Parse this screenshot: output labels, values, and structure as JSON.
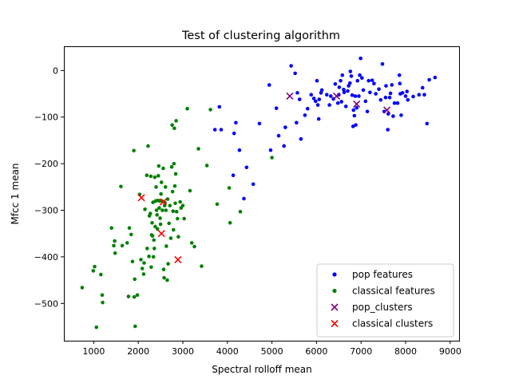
{
  "chart_data": {
    "type": "scatter",
    "title": "Test of clustering algorithm",
    "xlabel": "Spectral rolloff mean",
    "ylabel": "Mfcc 1 mean",
    "xlim": [
      330,
      9200
    ],
    "ylim": [
      -580,
      52
    ],
    "xticks": [
      1000,
      2000,
      3000,
      4000,
      5000,
      6000,
      7000,
      8000,
      9000
    ],
    "yticks": [
      0,
      -100,
      -200,
      -300,
      -400,
      -500
    ],
    "grid": false,
    "legend_position": "lower-right",
    "series": [
      {
        "name": "pop features",
        "marker": "dot",
        "color": "#0000ff",
        "points": [
          [
            3820,
            -78
          ],
          [
            3720,
            -127
          ],
          [
            3860,
            -127
          ],
          [
            4150,
            -135
          ],
          [
            4190,
            -112
          ],
          [
            4270,
            -171
          ],
          [
            4130,
            -225
          ],
          [
            4370,
            -275
          ],
          [
            4430,
            -208
          ],
          [
            4580,
            -244
          ],
          [
            4720,
            -114
          ],
          [
            4940,
            -31
          ],
          [
            4970,
            -171
          ],
          [
            5100,
            -81
          ],
          [
            5150,
            -140
          ],
          [
            5270,
            -162
          ],
          [
            5300,
            -122
          ],
          [
            5430,
            10
          ],
          [
            5520,
            -6
          ],
          [
            5550,
            -112
          ],
          [
            5570,
            -48
          ],
          [
            5620,
            -62
          ],
          [
            5650,
            -147
          ],
          [
            5740,
            -96
          ],
          [
            5800,
            -82
          ],
          [
            5880,
            -52
          ],
          [
            5940,
            -60
          ],
          [
            5980,
            -66
          ],
          [
            6010,
            -22
          ],
          [
            6030,
            -74
          ],
          [
            6050,
            -104
          ],
          [
            6060,
            -62
          ],
          [
            6100,
            -48
          ],
          [
            6120,
            -42
          ],
          [
            6230,
            -52
          ],
          [
            6290,
            -74
          ],
          [
            6320,
            -55
          ],
          [
            6380,
            -61
          ],
          [
            6420,
            -29
          ],
          [
            6480,
            -70
          ],
          [
            6500,
            -52
          ],
          [
            6510,
            -36
          ],
          [
            6540,
            -22
          ],
          [
            6560,
            -67
          ],
          [
            6580,
            -10
          ],
          [
            6610,
            -41
          ],
          [
            6620,
            -47
          ],
          [
            6660,
            -77
          ],
          [
            6700,
            -44
          ],
          [
            6720,
            -33
          ],
          [
            6750,
            -27
          ],
          [
            6760,
            -2
          ],
          [
            6780,
            -12
          ],
          [
            6800,
            -53
          ],
          [
            6820,
            -120
          ],
          [
            6830,
            -85
          ],
          [
            6850,
            -97
          ],
          [
            6870,
            -55
          ],
          [
            6880,
            -117
          ],
          [
            6900,
            -80
          ],
          [
            6920,
            -22
          ],
          [
            6950,
            -55
          ],
          [
            6970,
            -10
          ],
          [
            6990,
            26
          ],
          [
            7020,
            -16
          ],
          [
            7050,
            -42
          ],
          [
            7100,
            -66
          ],
          [
            7140,
            -88
          ],
          [
            7170,
            -22
          ],
          [
            7200,
            -47
          ],
          [
            7250,
            -21
          ],
          [
            7290,
            -28
          ],
          [
            7330,
            -50
          ],
          [
            7400,
            -40
          ],
          [
            7440,
            -63
          ],
          [
            7480,
            14
          ],
          [
            7520,
            -88
          ],
          [
            7550,
            -58
          ],
          [
            7560,
            -33
          ],
          [
            7600,
            -127
          ],
          [
            7610,
            -93
          ],
          [
            7640,
            -58
          ],
          [
            7660,
            -49
          ],
          [
            7690,
            -31
          ],
          [
            7720,
            -98
          ],
          [
            7750,
            -70
          ],
          [
            7820,
            -70
          ],
          [
            7860,
            -10
          ],
          [
            7870,
            -28
          ],
          [
            7880,
            -50
          ],
          [
            7900,
            -96
          ],
          [
            7930,
            -48
          ],
          [
            8000,
            -55
          ],
          [
            8030,
            -45
          ],
          [
            8050,
            -63
          ],
          [
            8170,
            -56
          ],
          [
            8300,
            -52
          ],
          [
            8380,
            -37
          ],
          [
            8420,
            -52
          ],
          [
            8480,
            -114
          ],
          [
            8530,
            -20
          ],
          [
            8660,
            -15
          ]
        ]
      },
      {
        "name": "classical features",
        "marker": "dot",
        "color": "#008000",
        "points": [
          [
            740,
            -466
          ],
          [
            990,
            -430
          ],
          [
            1020,
            -421
          ],
          [
            1060,
            -551
          ],
          [
            1160,
            -438
          ],
          [
            1190,
            -482
          ],
          [
            1200,
            -498
          ],
          [
            1400,
            -338
          ],
          [
            1450,
            -376
          ],
          [
            1470,
            -366
          ],
          [
            1480,
            -392
          ],
          [
            1610,
            -249
          ],
          [
            1640,
            -376
          ],
          [
            1750,
            -370
          ],
          [
            1780,
            -485
          ],
          [
            1800,
            -338
          ],
          [
            1840,
            -352
          ],
          [
            1870,
            -410
          ],
          [
            1900,
            -172
          ],
          [
            1910,
            -486
          ],
          [
            1920,
            -448
          ],
          [
            1930,
            -549
          ],
          [
            1980,
            -482
          ],
          [
            2030,
            -266
          ],
          [
            2060,
            -406
          ],
          [
            2090,
            -425
          ],
          [
            2120,
            -437
          ],
          [
            2130,
            -413
          ],
          [
            2150,
            -298
          ],
          [
            2190,
            -225
          ],
          [
            2200,
            -382
          ],
          [
            2220,
            -162
          ],
          [
            2240,
            -399
          ],
          [
            2250,
            -312
          ],
          [
            2270,
            -307
          ],
          [
            2280,
            -227
          ],
          [
            2290,
            -422
          ],
          [
            2300,
            -353
          ],
          [
            2310,
            -327
          ],
          [
            2320,
            -355
          ],
          [
            2330,
            -283
          ],
          [
            2340,
            -400
          ],
          [
            2350,
            -364
          ],
          [
            2360,
            -382
          ],
          [
            2370,
            -229
          ],
          [
            2380,
            -335
          ],
          [
            2390,
            -280
          ],
          [
            2400,
            -250
          ],
          [
            2410,
            -300
          ],
          [
            2420,
            -310
          ],
          [
            2430,
            -340
          ],
          [
            2440,
            -279
          ],
          [
            2450,
            -226
          ],
          [
            2460,
            -205
          ],
          [
            2470,
            -295
          ],
          [
            2480,
            -280
          ],
          [
            2490,
            -317
          ],
          [
            2500,
            -330
          ],
          [
            2510,
            -265
          ],
          [
            2520,
            -240
          ],
          [
            2530,
            -280
          ],
          [
            2540,
            -300
          ],
          [
            2560,
            -210
          ],
          [
            2570,
            -427
          ],
          [
            2580,
            -445
          ],
          [
            2590,
            -290
          ],
          [
            2600,
            -284
          ],
          [
            2610,
            -250
          ],
          [
            2620,
            -300
          ],
          [
            2630,
            -377
          ],
          [
            2650,
            -450
          ],
          [
            2660,
            -276
          ],
          [
            2670,
            -415
          ],
          [
            2690,
            -328
          ],
          [
            2710,
            -290
          ],
          [
            2730,
            -360
          ],
          [
            2750,
            -207
          ],
          [
            2760,
            -117
          ],
          [
            2770,
            -260
          ],
          [
            2780,
            -302
          ],
          [
            2790,
            -342
          ],
          [
            2800,
            -200
          ],
          [
            2810,
            -124
          ],
          [
            2820,
            -248
          ],
          [
            2830,
            -285
          ],
          [
            2840,
            -222
          ],
          [
            2850,
            -108
          ],
          [
            2860,
            -303
          ],
          [
            2880,
            -318
          ],
          [
            2900,
            -357
          ],
          [
            2940,
            -282
          ],
          [
            2960,
            -295
          ],
          [
            3000,
            -290
          ],
          [
            3030,
            -318
          ],
          [
            3100,
            -82
          ],
          [
            3160,
            -258
          ],
          [
            3200,
            -370
          ],
          [
            3260,
            -378
          ],
          [
            3350,
            -168
          ],
          [
            3420,
            -420
          ],
          [
            3540,
            -204
          ],
          [
            3620,
            -84
          ],
          [
            3770,
            -287
          ],
          [
            4040,
            -252
          ],
          [
            4060,
            -327
          ],
          [
            4290,
            -303
          ],
          [
            5000,
            -187
          ]
        ]
      },
      {
        "name": "pop_clusters",
        "marker": "x",
        "color": "#800080",
        "points": [
          [
            5400,
            -55
          ],
          [
            6450,
            -55
          ],
          [
            6900,
            -72
          ],
          [
            7580,
            -85
          ]
        ]
      },
      {
        "name": "classical clusters",
        "marker": "x",
        "color": "#ff0000",
        "points": [
          [
            2070,
            -273
          ],
          [
            2560,
            -282
          ],
          [
            2520,
            -350
          ],
          [
            2890,
            -406
          ]
        ]
      }
    ]
  }
}
